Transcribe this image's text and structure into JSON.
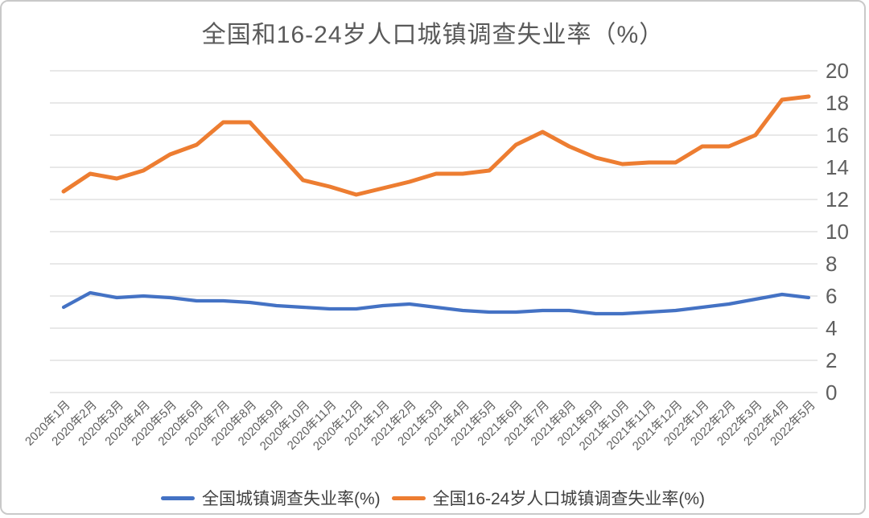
{
  "chart_data": {
    "type": "line",
    "title": "全国和16-24岁人口城镇调查失业率（%）",
    "categories": [
      "2020年1月",
      "2020年2月",
      "2020年3月",
      "2020年4月",
      "2020年5月",
      "2020年6月",
      "2020年7月",
      "2020年8月",
      "2020年9月",
      "2020年10月",
      "2020年11月",
      "2020年12月",
      "2021年1月",
      "2021年2月",
      "2021年3月",
      "2021年4月",
      "2021年5月",
      "2021年6月",
      "2021年7月",
      "2021年8月",
      "2021年9月",
      "2021年10月",
      "2021年11月",
      "2021年12月",
      "2022年1月",
      "2022年2月",
      "2022年3月",
      "2022年4月",
      "2022年5月"
    ],
    "series": [
      {
        "name": "全国城镇调查失业率(%)",
        "color": "#4472C4",
        "values": [
          5.3,
          6.2,
          5.9,
          6.0,
          5.9,
          5.7,
          5.7,
          5.6,
          5.4,
          5.3,
          5.2,
          5.2,
          5.4,
          5.5,
          5.3,
          5.1,
          5.0,
          5.0,
          5.1,
          5.1,
          4.9,
          4.9,
          5.0,
          5.1,
          5.3,
          5.5,
          5.8,
          6.1,
          5.9
        ]
      },
      {
        "name": "全国16-24岁人口城镇调查失业率(%)",
        "color": "#ED7D31",
        "values": [
          12.5,
          13.6,
          13.3,
          13.8,
          14.8,
          15.4,
          16.8,
          16.8,
          15.0,
          13.2,
          12.8,
          12.3,
          12.7,
          13.1,
          13.6,
          13.6,
          13.8,
          15.4,
          16.2,
          15.3,
          14.6,
          14.2,
          14.3,
          14.3,
          15.3,
          15.3,
          16.0,
          18.2,
          18.4
        ]
      }
    ],
    "xlabel": "",
    "ylabel": "",
    "ylim": [
      0,
      20
    ],
    "ytick_step": 2,
    "y_axis_side": "right",
    "grid": true,
    "legend_position": "bottom"
  },
  "colors": {
    "title_text": "#595959",
    "axis_text": "#5f5f5f",
    "legend_text": "#404040",
    "gridline": "#d9d9d9",
    "background": "#ffffff",
    "series_blue": "#4472C4",
    "series_orange": "#ED7D31"
  }
}
